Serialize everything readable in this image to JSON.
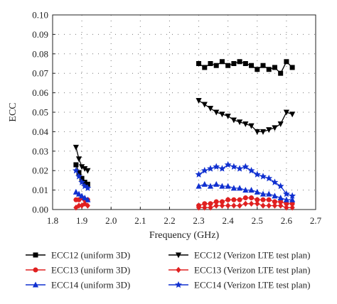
{
  "chart_data": {
    "type": "line",
    "title": "",
    "xlabel": "Frequency (GHz)",
    "ylabel": "ECC",
    "xlim": [
      1.8,
      2.7
    ],
    "ylim": [
      0.0,
      0.1
    ],
    "xticks": [
      "1.8",
      "1.9",
      "2.0",
      "2.1",
      "2.2",
      "2.3",
      "2.4",
      "2.5",
      "2.6",
      "2.7"
    ],
    "yticks": [
      "0.00",
      "0.01",
      "0.02",
      "0.03",
      "0.04",
      "0.05",
      "0.06",
      "0.07",
      "0.08",
      "0.09",
      "0.10"
    ],
    "grid": "dotted",
    "legend_position": "bottom",
    "series": [
      {
        "name": "ECC12 (uniform 3D)",
        "color": "#000000",
        "marker": "square",
        "segments": [
          {
            "x": [
              1.88,
              1.89,
              1.9,
              1.91,
              1.92
            ],
            "y": [
              0.023,
              0.019,
              0.016,
              0.014,
              0.013
            ]
          },
          {
            "x": [
              2.3,
              2.32,
              2.34,
              2.36,
              2.38,
              2.4,
              2.42,
              2.44,
              2.46,
              2.48,
              2.5,
              2.52,
              2.54,
              2.56,
              2.58,
              2.6,
              2.62
            ],
            "y": [
              0.075,
              0.073,
              0.075,
              0.074,
              0.076,
              0.074,
              0.075,
              0.076,
              0.075,
              0.074,
              0.072,
              0.074,
              0.072,
              0.073,
              0.07,
              0.076,
              0.073
            ]
          }
        ]
      },
      {
        "name": "ECC13 (uniform 3D)",
        "color": "#e02020",
        "marker": "circle",
        "segments": [
          {
            "x": [
              1.88,
              1.89,
              1.9,
              1.91,
              1.92
            ],
            "y": [
              0.005,
              0.005,
              0.006,
              0.005,
              0.005
            ]
          },
          {
            "x": [
              2.3,
              2.32,
              2.34,
              2.36,
              2.38,
              2.4,
              2.42,
              2.44,
              2.46,
              2.48,
              2.5,
              2.52,
              2.54,
              2.56,
              2.58,
              2.6,
              2.62
            ],
            "y": [
              0.002,
              0.003,
              0.003,
              0.004,
              0.004,
              0.005,
              0.005,
              0.005,
              0.006,
              0.006,
              0.005,
              0.005,
              0.005,
              0.004,
              0.004,
              0.003,
              0.003
            ]
          }
        ]
      },
      {
        "name": "ECC14 (uniform 3D)",
        "color": "#1030d0",
        "marker": "triangle-up",
        "segments": [
          {
            "x": [
              1.88,
              1.89,
              1.9,
              1.91,
              1.92
            ],
            "y": [
              0.009,
              0.008,
              0.007,
              0.006,
              0.005
            ]
          },
          {
            "x": [
              2.3,
              2.32,
              2.34,
              2.36,
              2.38,
              2.4,
              2.42,
              2.44,
              2.46,
              2.48,
              2.5,
              2.52,
              2.54,
              2.56,
              2.58,
              2.6,
              2.62
            ],
            "y": [
              0.012,
              0.013,
              0.012,
              0.013,
              0.012,
              0.012,
              0.011,
              0.011,
              0.01,
              0.01,
              0.009,
              0.008,
              0.008,
              0.007,
              0.006,
              0.005,
              0.005
            ]
          }
        ]
      },
      {
        "name": "ECC12 (Verizon LTE test plan)",
        "color": "#000000",
        "marker": "triangle-down",
        "segments": [
          {
            "x": [
              1.88,
              1.89,
              1.9,
              1.91,
              1.92
            ],
            "y": [
              0.032,
              0.026,
              0.022,
              0.021,
              0.02
            ]
          },
          {
            "x": [
              2.3,
              2.32,
              2.34,
              2.36,
              2.38,
              2.4,
              2.42,
              2.44,
              2.46,
              2.48,
              2.5,
              2.52,
              2.54,
              2.56,
              2.58,
              2.6,
              2.62
            ],
            "y": [
              0.056,
              0.054,
              0.052,
              0.05,
              0.049,
              0.048,
              0.046,
              0.045,
              0.044,
              0.043,
              0.04,
              0.04,
              0.041,
              0.042,
              0.044,
              0.05,
              0.049
            ]
          }
        ]
      },
      {
        "name": "ECC13 (Verizon LTE test plan)",
        "color": "#e02020",
        "marker": "diamond",
        "segments": [
          {
            "x": [
              1.88,
              1.89,
              1.9,
              1.91,
              1.92
            ],
            "y": [
              0.001,
              0.002,
              0.002,
              0.003,
              0.002
            ]
          },
          {
            "x": [
              2.3,
              2.32,
              2.34,
              2.36,
              2.38,
              2.4,
              2.42,
              2.44,
              2.46,
              2.48,
              2.5,
              2.52,
              2.54,
              2.56,
              2.58,
              2.6,
              2.62
            ],
            "y": [
              0.001,
              0.001,
              0.001,
              0.002,
              0.002,
              0.002,
              0.002,
              0.002,
              0.003,
              0.003,
              0.003,
              0.002,
              0.002,
              0.002,
              0.002,
              0.001,
              0.001
            ]
          }
        ]
      },
      {
        "name": "ECC14 (Verizon LTE test plan)",
        "color": "#1030d0",
        "marker": "star",
        "segments": [
          {
            "x": [
              1.88,
              1.89,
              1.9,
              1.91,
              1.92
            ],
            "y": [
              0.02,
              0.017,
              0.014,
              0.012,
              0.011
            ]
          },
          {
            "x": [
              2.3,
              2.32,
              2.34,
              2.36,
              2.38,
              2.4,
              2.42,
              2.44,
              2.46,
              2.48,
              2.5,
              2.52,
              2.54,
              2.56,
              2.58,
              2.6,
              2.62
            ],
            "y": [
              0.018,
              0.02,
              0.021,
              0.022,
              0.021,
              0.023,
              0.022,
              0.021,
              0.022,
              0.02,
              0.018,
              0.017,
              0.016,
              0.014,
              0.012,
              0.008,
              0.007
            ]
          }
        ]
      }
    ]
  }
}
